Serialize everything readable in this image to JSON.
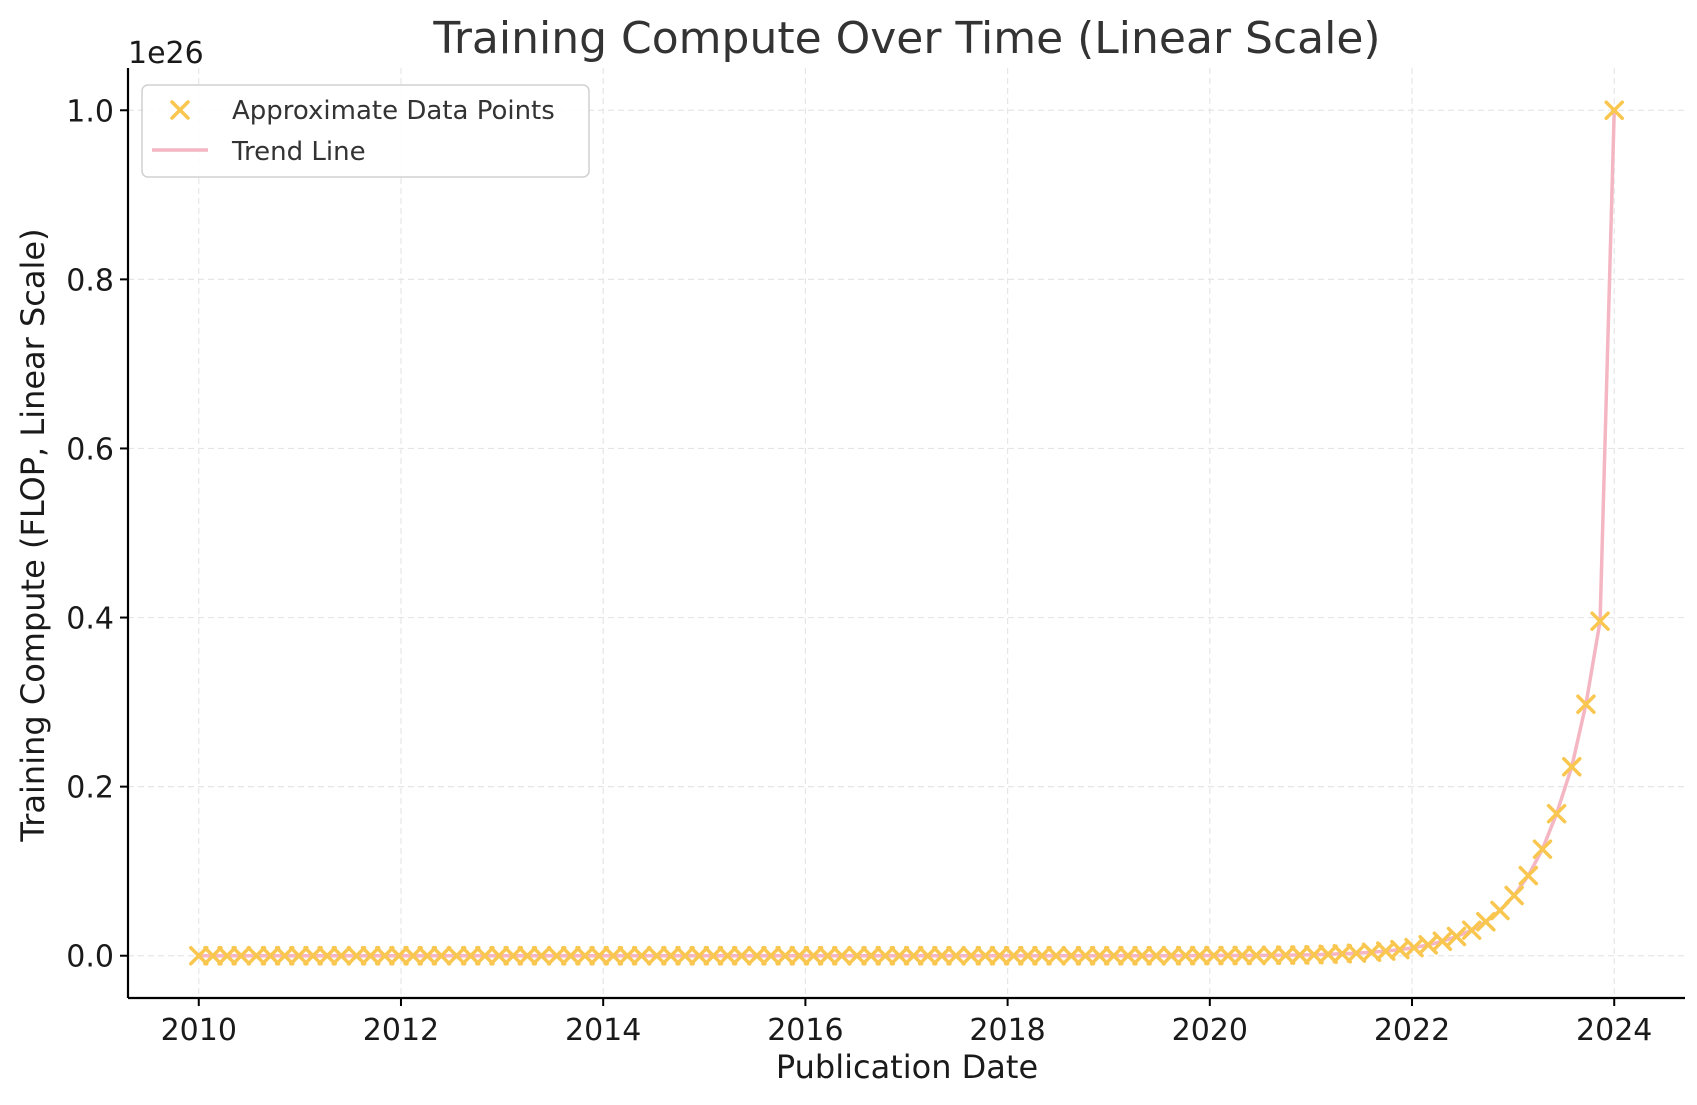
{
  "chart_data": {
    "type": "scatter",
    "title": "Training Compute Over Time (Linear Scale)",
    "xlabel": "Publication Date",
    "ylabel": "Training Compute (FLOP, Linear Scale)",
    "y_offset_text": "1e26",
    "x_unit": "year",
    "xlim": [
      2009.3,
      2024.7
    ],
    "ylim": [
      -0.05,
      1.05
    ],
    "y_scale_factor": 1e+26,
    "x_ticks": [
      2010,
      2012,
      2014,
      2016,
      2018,
      2020,
      2022,
      2024
    ],
    "x_tick_labels": [
      "2010",
      "2012",
      "2014",
      "2016",
      "2018",
      "2020",
      "2022",
      "2024"
    ],
    "y_ticks": [
      0.0,
      0.2,
      0.4,
      0.6,
      0.8,
      1.0
    ],
    "y_tick_labels": [
      "0.0",
      "0.2",
      "0.4",
      "0.6",
      "0.8",
      "1.0"
    ],
    "grid": true,
    "legend_position": "top-left",
    "series": [
      {
        "name": "Approximate Data Points",
        "kind": "scatter",
        "marker": "x",
        "color": "#f9c74f",
        "x": [
          2010.0,
          2010.14,
          2010.28,
          2010.42,
          2010.57,
          2010.71,
          2010.85,
          2010.99,
          2011.13,
          2011.27,
          2011.41,
          2011.56,
          2011.7,
          2011.84,
          2011.98,
          2012.12,
          2012.26,
          2012.4,
          2012.55,
          2012.69,
          2012.83,
          2012.97,
          2013.11,
          2013.25,
          2013.39,
          2013.54,
          2013.68,
          2013.82,
          2013.96,
          2014.1,
          2014.24,
          2014.38,
          2014.53,
          2014.67,
          2014.81,
          2014.95,
          2015.09,
          2015.23,
          2015.37,
          2015.52,
          2015.66,
          2015.8,
          2015.94,
          2016.08,
          2016.22,
          2016.36,
          2016.51,
          2016.65,
          2016.79,
          2016.93,
          2017.07,
          2017.21,
          2017.35,
          2017.49,
          2017.64,
          2017.78,
          2017.92,
          2018.06,
          2018.2,
          2018.34,
          2018.48,
          2018.63,
          2018.77,
          2018.91,
          2019.05,
          2019.19,
          2019.33,
          2019.47,
          2019.62,
          2019.76,
          2019.9,
          2020.04,
          2020.18,
          2020.32,
          2020.46,
          2020.61,
          2020.75,
          2020.89,
          2021.03,
          2021.17,
          2021.31,
          2021.45,
          2021.6,
          2021.74,
          2021.88,
          2022.02,
          2022.16,
          2022.3,
          2022.44,
          2022.59,
          2022.73,
          2022.87,
          2023.01,
          2023.15,
          2023.29,
          2023.43,
          2023.58,
          2023.72,
          2023.86,
          2024.0
        ],
        "y": [
          0,
          0,
          0,
          0,
          0,
          0,
          0,
          0,
          0,
          0,
          0,
          0,
          0,
          0,
          0,
          0,
          0,
          0,
          0,
          0,
          0,
          0,
          0,
          0,
          0,
          0,
          0,
          0,
          0,
          0,
          0,
          0,
          0,
          0,
          0,
          0,
          0,
          0,
          0,
          0,
          0,
          0,
          0,
          0,
          0,
          0,
          0,
          0,
          0,
          0,
          0,
          0,
          0,
          0,
          0,
          0,
          0,
          0,
          0,
          0,
          0,
          0,
          0,
          0,
          0,
          0,
          0,
          0,
          0,
          0.0001,
          0.0001,
          0.0002,
          0.0002,
          0.0003,
          0.0004,
          0.0005,
          0.0007,
          0.0009,
          0.0012,
          0.0017,
          0.0023,
          0.003,
          0.0041,
          0.0054,
          0.0072,
          0.0096,
          0.0128,
          0.0171,
          0.0227,
          0.0302,
          0.0402,
          0.0535,
          0.0712,
          0.0948,
          0.126,
          0.168,
          0.2235,
          0.2974,
          0.3957,
          1.0
        ]
      },
      {
        "name": "Trend Line",
        "kind": "line",
        "color": "#f4b6c2"
      }
    ]
  }
}
